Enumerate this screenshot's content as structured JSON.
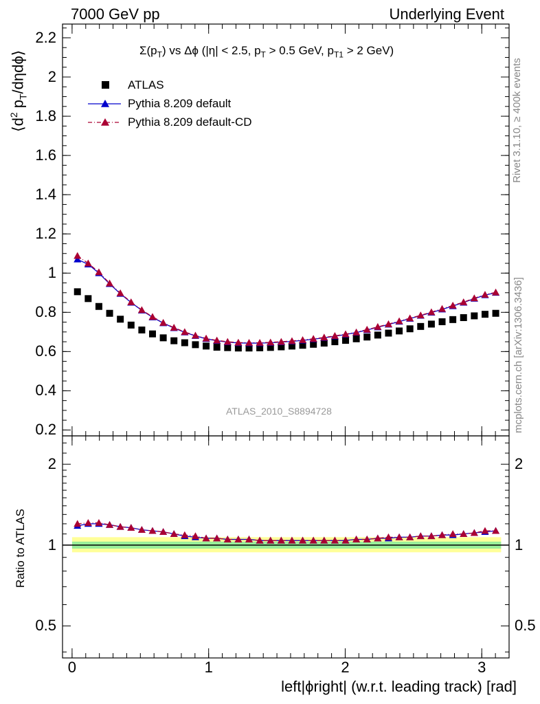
{
  "header": {
    "left": "7000 GeV pp",
    "right": "Underlying Event"
  },
  "main_panel": {
    "ylabel": "⟨d² p_T/dηdϕ⟩",
    "title": "Σ(p_T) vs Δϕ (|η| < 2.5, p_T > 0.5 GeV, p_T1 > 2 GeV)",
    "watermark": "ATLAS_2010_S8894728",
    "yticks": [
      "0.2",
      "0.4",
      "0.6",
      "0.8",
      "1",
      "1.2",
      "1.4",
      "1.6",
      "1.8",
      "2",
      "2.2"
    ]
  },
  "ratio_panel": {
    "ylabel": "Ratio to ATLAS",
    "yticks": [
      "0.5",
      "1",
      "2"
    ]
  },
  "x_axis": {
    "label": "left|ϕright| (w.r.t. leading track) [rad]",
    "ticks": [
      "0",
      "1",
      "2",
      "3"
    ]
  },
  "side_labels": {
    "rivet": "Rivet 3.1.10, ≥ 400k events",
    "mcplots": "mcplots.cern.ch [arXiv:1306.3436]"
  },
  "legend": [
    {
      "label": "ATLAS",
      "color": "#000000",
      "marker": "square"
    },
    {
      "label": "Pythia 8.209 default",
      "color": "#0000cc",
      "marker": "triangle"
    },
    {
      "label": "Pythia 8.209 default-CD",
      "color": "#aa0033",
      "marker": "triangle"
    }
  ],
  "chart_data": {
    "type": "scatter",
    "title": "Σ(p_T) vs Δϕ (|η| < 2.5, p_T > 0.5 GeV, p_T1 > 2 GeV)",
    "xlabel": "left|ϕright| (w.r.t. leading track) [rad]",
    "ylabel": "⟨d² p_T/dηdϕ⟩",
    "xlim": [
      -0.07,
      3.2
    ],
    "ylim": [
      0.17,
      2.27
    ],
    "ratio_ylim": [
      0.38,
      2.55
    ],
    "ratio_log_scale": true,
    "x": [
      0.0393,
      0.1178,
      0.1963,
      0.2749,
      0.3534,
      0.432,
      0.5105,
      0.589,
      0.6676,
      0.7461,
      0.8247,
      0.9032,
      0.9817,
      1.0603,
      1.1388,
      1.2174,
      1.2959,
      1.3744,
      1.453,
      1.5315,
      1.6101,
      1.6886,
      1.7671,
      1.8457,
      1.9242,
      2.0028,
      2.0813,
      2.1598,
      2.2384,
      2.3169,
      2.3955,
      2.474,
      2.5525,
      2.6311,
      2.7096,
      2.7882,
      2.8667,
      2.9452,
      3.0238,
      3.1023
    ],
    "series": [
      {
        "name": "ATLAS",
        "values": [
          0.905,
          0.87,
          0.83,
          0.795,
          0.765,
          0.735,
          0.71,
          0.69,
          0.67,
          0.655,
          0.645,
          0.635,
          0.628,
          0.622,
          0.62,
          0.618,
          0.618,
          0.619,
          0.621,
          0.624,
          0.628,
          0.632,
          0.637,
          0.643,
          0.65,
          0.657,
          0.665,
          0.674,
          0.684,
          0.694,
          0.705,
          0.716,
          0.728,
          0.74,
          0.752,
          0.763,
          0.773,
          0.782,
          0.79,
          0.795
        ]
      },
      {
        "name": "Pythia 8.209 default",
        "values": [
          1.07,
          1.045,
          1.0,
          0.945,
          0.895,
          0.85,
          0.81,
          0.775,
          0.745,
          0.72,
          0.698,
          0.68,
          0.665,
          0.655,
          0.648,
          0.644,
          0.643,
          0.643,
          0.645,
          0.648,
          0.652,
          0.657,
          0.663,
          0.67,
          0.678,
          0.687,
          0.697,
          0.71,
          0.724,
          0.738,
          0.753,
          0.768,
          0.783,
          0.799,
          0.815,
          0.832,
          0.85,
          0.87,
          0.888,
          0.9
        ]
      },
      {
        "name": "Pythia 8.209 default-CD",
        "values": [
          1.088,
          1.05,
          1.005,
          0.948,
          0.898,
          0.852,
          0.812,
          0.777,
          0.747,
          0.722,
          0.7,
          0.682,
          0.667,
          0.657,
          0.65,
          0.646,
          0.645,
          0.645,
          0.647,
          0.65,
          0.654,
          0.659,
          0.665,
          0.672,
          0.68,
          0.689,
          0.698,
          0.712,
          0.726,
          0.74,
          0.755,
          0.77,
          0.785,
          0.801,
          0.818,
          0.835,
          0.852,
          0.872,
          0.89,
          0.902
        ]
      }
    ],
    "ratio_series": [
      {
        "name": "Pythia 8.209 default",
        "values": [
          1.18,
          1.2,
          1.2,
          1.19,
          1.17,
          1.16,
          1.14,
          1.13,
          1.12,
          1.1,
          1.08,
          1.07,
          1.06,
          1.06,
          1.05,
          1.05,
          1.05,
          1.04,
          1.04,
          1.04,
          1.04,
          1.04,
          1.04,
          1.04,
          1.04,
          1.04,
          1.05,
          1.05,
          1.06,
          1.06,
          1.07,
          1.07,
          1.08,
          1.08,
          1.09,
          1.09,
          1.1,
          1.11,
          1.12,
          1.13
        ]
      },
      {
        "name": "Pythia 8.209 default-CD",
        "values": [
          1.2,
          1.21,
          1.21,
          1.19,
          1.17,
          1.16,
          1.14,
          1.13,
          1.12,
          1.1,
          1.09,
          1.08,
          1.06,
          1.06,
          1.05,
          1.05,
          1.05,
          1.04,
          1.04,
          1.04,
          1.04,
          1.04,
          1.04,
          1.04,
          1.04,
          1.04,
          1.05,
          1.05,
          1.06,
          1.07,
          1.07,
          1.07,
          1.08,
          1.08,
          1.09,
          1.1,
          1.1,
          1.11,
          1.13,
          1.13
        ]
      }
    ],
    "reference_line": 1.0,
    "uncertainty_bands": [
      {
        "color": "#ffff99",
        "lo": 0.94,
        "hi": 1.07
      },
      {
        "color": "#99ee99",
        "lo": 0.97,
        "hi": 1.03
      }
    ]
  }
}
